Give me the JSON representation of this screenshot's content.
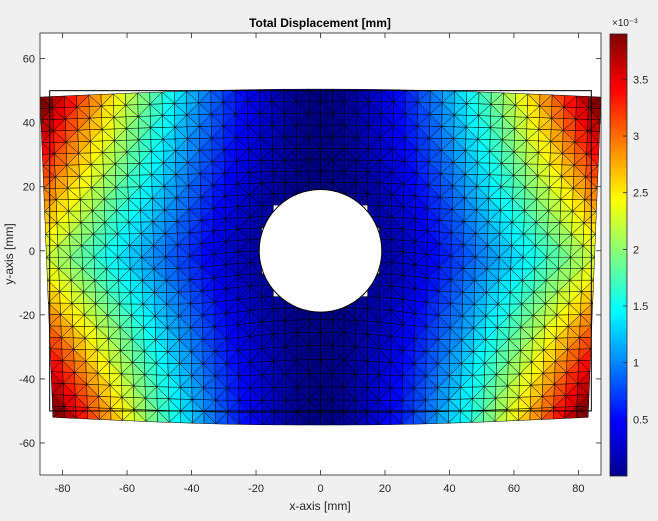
{
  "figure": {
    "background": "#f0f0f0",
    "axes_background": "#ffffff"
  },
  "chart_data": {
    "type": "heatmap",
    "title": "Total Displacement [mm]",
    "xlabel": "x-axis [mm]",
    "ylabel": "y-axis [mm]",
    "xlim": [
      -87,
      87
    ],
    "ylim": [
      -70,
      68
    ],
    "xticks": [
      -80,
      -60,
      -40,
      -20,
      0,
      20,
      40,
      60,
      80
    ],
    "yticks": [
      -60,
      -40,
      -20,
      0,
      20,
      40,
      60
    ],
    "grid": false,
    "colormap": "jet",
    "colorbar": {
      "location": "right",
      "range": [
        0,
        0.0039
      ],
      "exponent_label": "×10⁻³",
      "ticks": [
        0.5,
        1,
        1.5,
        2,
        2.5,
        3,
        3.5
      ],
      "tick_labels": [
        "0.5",
        "1",
        "1.5",
        "2",
        "2.5",
        "3",
        "3.5"
      ]
    },
    "domain": {
      "shape": "rectangular plate with central circular hole",
      "undeformed_outline": {
        "x": [
          -84,
          84
        ],
        "y": [
          -50,
          50
        ]
      },
      "hole_radius": 19,
      "deformed_corners": [
        [
          -87,
          48
        ],
        [
          87,
          48
        ],
        [
          83,
          -52
        ],
        [
          -83,
          -52
        ]
      ],
      "max_displacement_location": "plate corners",
      "min_displacement_location": "around the hole and along y=0 band"
    },
    "mesh": "triangular finite-element mesh"
  }
}
